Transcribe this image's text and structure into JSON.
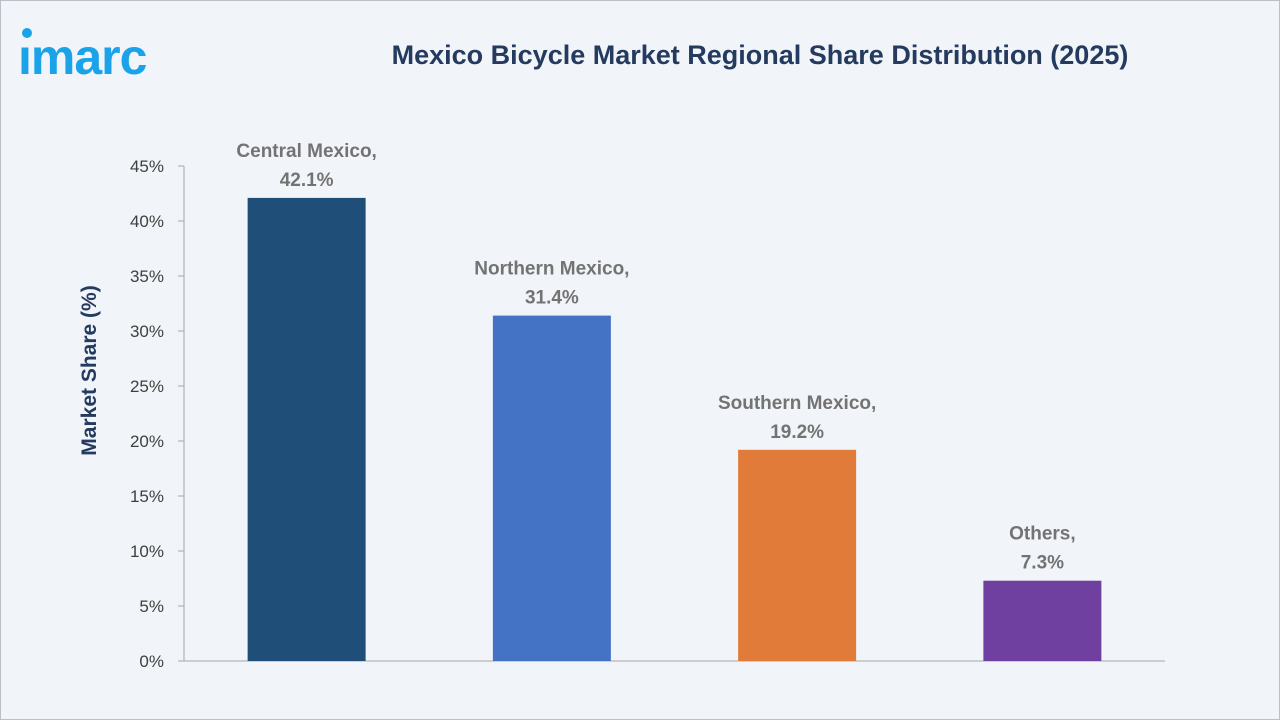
{
  "brand": {
    "logo_text": "imarc",
    "logo_color": "#1aa3e8"
  },
  "chart_data": {
    "type": "bar",
    "title": "Mexico Bicycle Market Regional Share Distribution (2025)",
    "ylabel": "Market Share (%)",
    "xlabel": "",
    "ylim": [
      0,
      45
    ],
    "yticks": [
      0,
      5,
      10,
      15,
      20,
      25,
      30,
      35,
      40,
      45
    ],
    "ytick_labels": [
      "0%",
      "5%",
      "10%",
      "15%",
      "20%",
      "25%",
      "30%",
      "35%",
      "40%",
      "45%"
    ],
    "grid": false,
    "categories": [
      "Central Mexico",
      "Northern Mexico",
      "Southern Mexico",
      "Others"
    ],
    "values": [
      42.1,
      31.4,
      19.2,
      7.3
    ],
    "data_labels": [
      [
        "Central Mexico,",
        "42.1%"
      ],
      [
        "Northern Mexico,",
        "31.4%"
      ],
      [
        "Southern Mexico,",
        "19.2%"
      ],
      [
        "Others,",
        "7.3%"
      ]
    ],
    "colors": [
      "#1f4e79",
      "#4472c4",
      "#e07b39",
      "#7040a0"
    ]
  }
}
